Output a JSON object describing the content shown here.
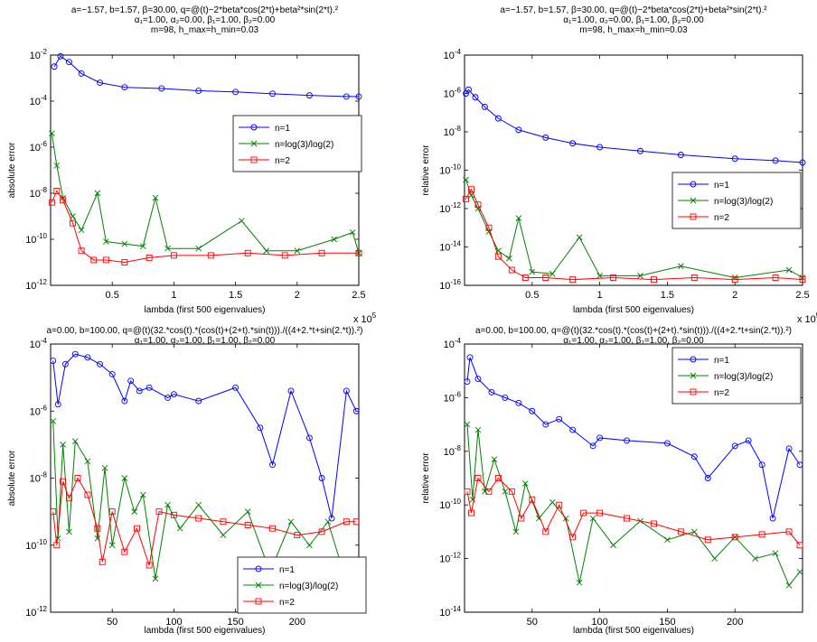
{
  "chart_data": [
    {
      "type": "line",
      "title_lines": [
        "a=−1.57, b=1.57, β=30.00, q=@(t)−2*beta*cos(2*t)+beta²*sin(2*t).²",
        "α₁=1.00, α₂=0.00, β₁=1.00, β₂=0.00",
        "m=98, h_max=h_min=0.03"
      ],
      "xlabel": "lambda (first 500 eigenvalues)",
      "ylabel": "absolute error",
      "xlim": [
        0,
        250000
      ],
      "ylim": [
        1e-12,
        0.01
      ],
      "yscale": "log",
      "xticks": [
        0.5,
        1,
        1.5,
        2,
        2.5
      ],
      "x_multiplier": "x 10^5",
      "yticks_exp": [
        -12,
        -10,
        -8,
        -6,
        -4,
        -2
      ],
      "legend": "right",
      "series": [
        {
          "name": "n=1",
          "color": "#0000ff",
          "marker": "circle",
          "x": [
            3000,
            8000,
            15000,
            25000,
            40000,
            60000,
            90000,
            120000,
            150000,
            180000,
            210000,
            240000,
            250000
          ],
          "y_log10": [
            -2.5,
            -2.05,
            -2.3,
            -2.8,
            -3.2,
            -3.4,
            -3.45,
            -3.55,
            -3.6,
            -3.68,
            -3.75,
            -3.8,
            -3.8
          ]
        },
        {
          "name": "n=log(3)/log(2)",
          "color": "#008000",
          "marker": "x",
          "x": [
            1000,
            5000,
            10000,
            18000,
            25000,
            38000,
            45000,
            60000,
            75000,
            85000,
            95000,
            120000,
            155000,
            175000,
            200000,
            230000,
            245000,
            250000
          ],
          "y_log10": [
            -5.4,
            -6.8,
            -8.2,
            -9.0,
            -9.6,
            -8.0,
            -10.1,
            -10.2,
            -10.3,
            -8.2,
            -10.4,
            -10.4,
            -9.2,
            -10.5,
            -10.5,
            -10.0,
            -9.7,
            -10.6
          ]
        },
        {
          "name": "n=2",
          "color": "#ff0000",
          "marker": "square",
          "x": [
            1000,
            5000,
            10000,
            18000,
            25000,
            35000,
            45000,
            60000,
            80000,
            100000,
            130000,
            160000,
            190000,
            220000,
            250000
          ],
          "y_log10": [
            -8.4,
            -7.9,
            -8.3,
            -9.3,
            -10.5,
            -10.9,
            -10.9,
            -11.0,
            -10.8,
            -10.7,
            -10.7,
            -10.6,
            -10.7,
            -10.6,
            -10.6
          ]
        }
      ]
    },
    {
      "type": "line",
      "title_lines": [
        "a=−1.57, b=1.57, β=30.00, q=@(t)−2*beta*cos(2*t)+beta²*sin(2*t).²",
        "α₁=1.00, α₂=0.00, β₁=1.00, β₂=0.00",
        "m=98, h_max=h_min=0.03"
      ],
      "xlabel": "lambda (first 500 eigenvalues)",
      "ylabel": "relative error",
      "xlim": [
        0,
        250000
      ],
      "ylim": [
        1e-16,
        0.0001
      ],
      "yscale": "log",
      "xticks": [
        0.5,
        1,
        1.5,
        2,
        2.5
      ],
      "x_multiplier": "x 10^5",
      "yticks_exp": [
        -16,
        -14,
        -12,
        -10,
        -8,
        -6,
        -4
      ],
      "legend": "right",
      "series": [
        {
          "name": "n=1",
          "color": "#0000ff",
          "marker": "circle",
          "x": [
            1000,
            3000,
            8000,
            15000,
            25000,
            40000,
            60000,
            80000,
            100000,
            130000,
            160000,
            200000,
            230000,
            250000
          ],
          "y_log10": [
            -6.0,
            -5.8,
            -6.2,
            -6.7,
            -7.3,
            -7.9,
            -8.3,
            -8.6,
            -8.8,
            -9.0,
            -9.2,
            -9.4,
            -9.5,
            -9.6
          ]
        },
        {
          "name": "n=log(3)/log(2)",
          "color": "#008000",
          "marker": "x",
          "x": [
            1000,
            5000,
            10000,
            18000,
            25000,
            33000,
            40000,
            50000,
            65000,
            85000,
            100000,
            130000,
            160000,
            200000,
            240000,
            250000
          ],
          "y_log10": [
            -10.5,
            -11.3,
            -12.0,
            -13.2,
            -14.2,
            -14.6,
            -12.5,
            -15.3,
            -15.4,
            -13.5,
            -15.5,
            -15.5,
            -15.0,
            -15.6,
            -15.2,
            -15.6
          ]
        },
        {
          "name": "n=2",
          "color": "#ff0000",
          "marker": "square",
          "x": [
            1000,
            5000,
            10000,
            18000,
            25000,
            35000,
            45000,
            60000,
            80000,
            110000,
            140000,
            170000,
            200000,
            230000,
            250000
          ],
          "y_log10": [
            -11.5,
            -11.0,
            -11.8,
            -13.0,
            -14.5,
            -15.2,
            -15.6,
            -15.6,
            -15.7,
            -15.6,
            -15.7,
            -15.6,
            -15.7,
            -15.6,
            -15.7
          ]
        }
      ]
    },
    {
      "type": "line",
      "title_lines": [
        "a=0.00, b=100.00, q=@(t)(32.*cos(t).*(cos(t)+(2+t).*sin(t)))./((4+2.*t+sin(2.*t)).²)",
        "α₁=1.00, α₂=1.00, β₁=1.00, β₂=0.00",
        "m=174, h_max=h_min=0.57"
      ],
      "xlabel": "lambda (first 500 eigenvalues)",
      "ylabel": "absolute error",
      "xlim": [
        0,
        250
      ],
      "ylim": [
        1e-12,
        0.0001
      ],
      "yscale": "log",
      "xticks": [
        50,
        100,
        150,
        200
      ],
      "yticks_exp": [
        -12,
        -10,
        -8,
        -6,
        -4
      ],
      "legend": "bottom-right",
      "series": [
        {
          "name": "n=1",
          "color": "#0000ff",
          "marker": "circle",
          "x": [
            2,
            6,
            12,
            20,
            30,
            40,
            50,
            60,
            65,
            72,
            80,
            95,
            100,
            120,
            150,
            170,
            180,
            195,
            210,
            220,
            228,
            240,
            248
          ],
          "y_log10": [
            -4.5,
            -5.8,
            -4.6,
            -4.3,
            -4.4,
            -4.6,
            -4.9,
            -5.7,
            -5.1,
            -5.4,
            -5.3,
            -5.6,
            -5.5,
            -5.7,
            -5.3,
            -6.5,
            -7.6,
            -5.4,
            -6.8,
            -8.0,
            -9.2,
            -5.4,
            -6.0
          ]
        },
        {
          "name": "n=log(3)/log(2)",
          "color": "#008000",
          "marker": "x",
          "x": [
            2,
            6,
            10,
            15,
            20,
            30,
            38,
            44,
            50,
            60,
            68,
            75,
            85,
            95,
            105,
            120,
            140,
            160,
            178,
            195,
            210,
            225,
            235,
            248
          ],
          "y_log10": [
            -6.3,
            -9.8,
            -7.0,
            -9.6,
            -6.9,
            -7.5,
            -9.8,
            -7.7,
            -10.0,
            -8.0,
            -9.0,
            -8.5,
            -11.0,
            -8.8,
            -9.5,
            -8.8,
            -9.7,
            -9.0,
            -10.8,
            -9.3,
            -10.0,
            -9.3,
            -10.5,
            -10.8
          ]
        },
        {
          "name": "n=2",
          "color": "#ff0000",
          "marker": "square",
          "x": [
            2,
            5,
            10,
            15,
            22,
            30,
            38,
            42,
            50,
            60,
            70,
            80,
            88,
            100,
            120,
            140,
            160,
            180,
            200,
            220,
            240,
            248
          ],
          "y_log10": [
            -9.0,
            -10.0,
            -8.1,
            -8.6,
            -8.0,
            -8.5,
            -9.5,
            -10.5,
            -9.0,
            -10.2,
            -9.5,
            -10.6,
            -9.0,
            -9.1,
            -9.2,
            -9.3,
            -9.4,
            -9.5,
            -9.7,
            -9.6,
            -9.3,
            -9.3
          ]
        }
      ]
    },
    {
      "type": "line",
      "title_lines": [
        "a=0.00, b=100.00, q=@(t)(32.*cos(t).*(cos(t)+(2+t).*sin(t)))./((4+2.*t+sin(2.*t)).²)",
        "α₁=1.00, α₂=1.00, β₁=1.00, β₂=0.00",
        "m=174, h_max=h_min=0.57"
      ],
      "xlabel": "lambda (first 500 eigenvalues)",
      "ylabel": "relative error",
      "xlim": [
        0,
        250
      ],
      "ylim": [
        1e-14,
        0.0001
      ],
      "yscale": "log",
      "xticks": [
        50,
        100,
        150,
        200
      ],
      "yticks_exp": [
        -14,
        -12,
        -10,
        -8,
        -6,
        -4
      ],
      "legend": "top-right",
      "series": [
        {
          "name": "n=1",
          "color": "#0000ff",
          "marker": "circle",
          "x": [
            2,
            4,
            10,
            20,
            30,
            40,
            50,
            60,
            70,
            80,
            95,
            100,
            120,
            150,
            170,
            180,
            200,
            210,
            220,
            228,
            240,
            248
          ],
          "y_log10": [
            -5.4,
            -4.5,
            -5.3,
            -5.8,
            -6.0,
            -6.2,
            -6.5,
            -7.0,
            -6.8,
            -7.2,
            -7.8,
            -7.5,
            -7.6,
            -7.7,
            -8.2,
            -9.0,
            -7.8,
            -7.6,
            -8.5,
            -10.5,
            -7.9,
            -8.5
          ]
        },
        {
          "name": "n=log(3)/log(2)",
          "color": "#008000",
          "marker": "x",
          "x": [
            2,
            6,
            10,
            15,
            22,
            30,
            38,
            45,
            55,
            65,
            75,
            85,
            95,
            110,
            130,
            150,
            170,
            185,
            200,
            215,
            230,
            240,
            248
          ],
          "y_log10": [
            -7.0,
            -9.8,
            -7.2,
            -9.5,
            -8.3,
            -9.5,
            -11.0,
            -9.2,
            -10.5,
            -9.9,
            -10.5,
            -12.9,
            -10.5,
            -11.5,
            -10.6,
            -11.3,
            -11.0,
            -12.0,
            -11.2,
            -12.0,
            -11.8,
            -13.0,
            -12.5
          ]
        },
        {
          "name": "n=2",
          "color": "#ff0000",
          "marker": "square",
          "x": [
            2,
            5,
            10,
            18,
            25,
            35,
            42,
            50,
            60,
            70,
            80,
            88,
            100,
            120,
            140,
            160,
            180,
            200,
            220,
            240,
            248
          ],
          "y_log10": [
            -9.5,
            -10.3,
            -9.0,
            -9.5,
            -9.0,
            -9.5,
            -10.5,
            -9.8,
            -11.0,
            -10.0,
            -11.2,
            -10.3,
            -10.3,
            -10.5,
            -10.7,
            -11.0,
            -11.3,
            -11.2,
            -11.1,
            -11.0,
            -11.5
          ]
        }
      ]
    }
  ]
}
